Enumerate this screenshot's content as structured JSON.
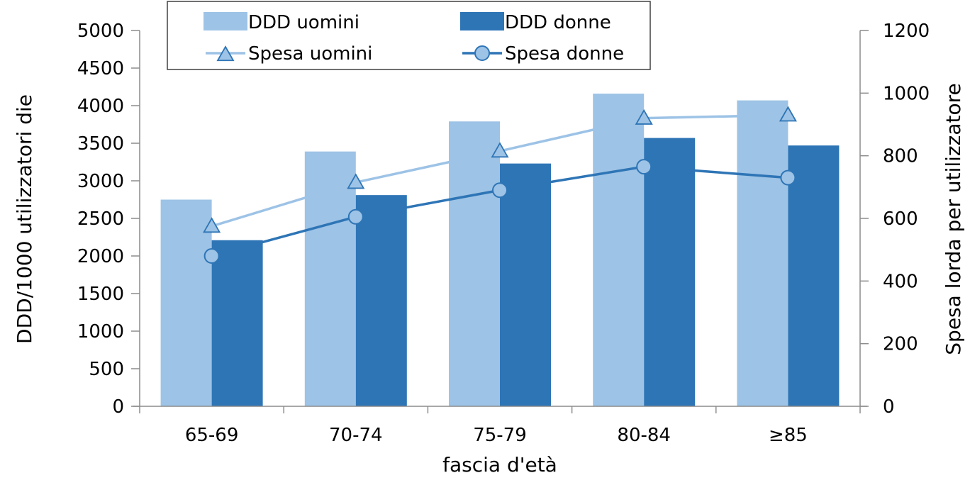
{
  "chart_data": {
    "type": "bar",
    "categories": [
      "65-69",
      "70-74",
      "75-79",
      "80-84",
      "≥85"
    ],
    "series": [
      {
        "name": "DDD uomini",
        "kind": "bar",
        "axis": "left",
        "color": "#9DC3E6",
        "values": [
          2750,
          3390,
          3790,
          4160,
          4070
        ]
      },
      {
        "name": "DDD donne",
        "kind": "bar",
        "axis": "left",
        "color": "#2E75B6",
        "values": [
          2210,
          2810,
          3230,
          3570,
          3470
        ]
      },
      {
        "name": "Spesa uomini",
        "kind": "line",
        "marker": "triangle",
        "axis": "right",
        "color": "#9DC3E6",
        "values": [
          575,
          715,
          815,
          920,
          930
        ]
      },
      {
        "name": "Spesa donne",
        "kind": "line",
        "marker": "circle",
        "axis": "right",
        "color": "#2E75B6",
        "values": [
          480,
          605,
          690,
          765,
          730
        ]
      }
    ],
    "xlabel": "fascia d'età",
    "ylabel": "DDD/1000 utilizzatori die",
    "y2label": "Spesa lorda per utilizzatore",
    "ylim": [
      0,
      5000
    ],
    "y2lim": [
      0,
      1200
    ],
    "yticks": [
      "0",
      "500",
      "1000",
      "1500",
      "2000",
      "2500",
      "3000",
      "3500",
      "4000",
      "4500",
      "5000"
    ],
    "y2ticks": [
      "0",
      "200",
      "400",
      "600",
      "800",
      "1000",
      "1200"
    ],
    "legend_position": "top",
    "grid": false
  }
}
